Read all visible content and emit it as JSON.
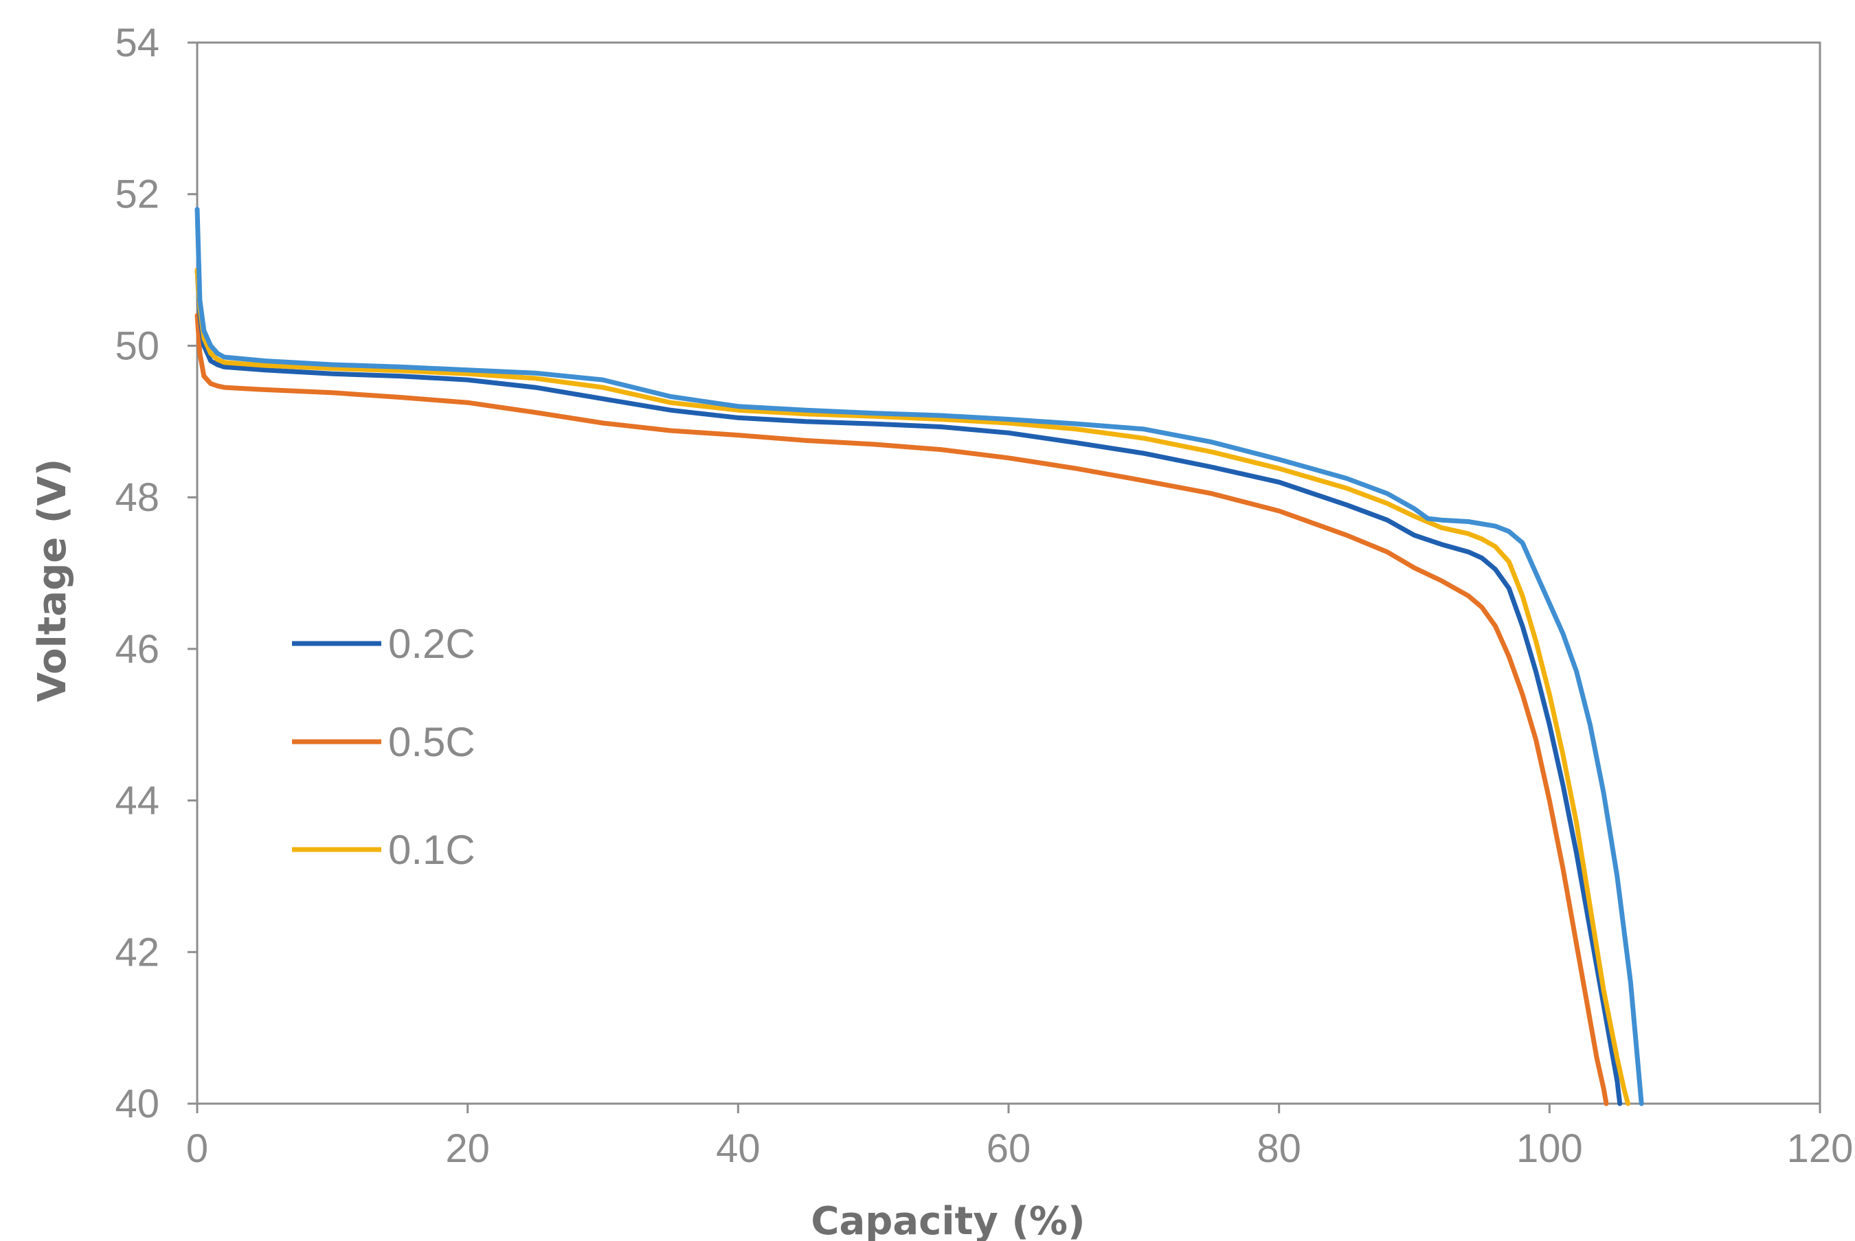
{
  "chart_data": {
    "type": "line",
    "xlabel": "Capacity (%)",
    "ylabel": "Voltage (V)",
    "xlim": [
      0,
      120
    ],
    "ylim": [
      40,
      54
    ],
    "xticks": [
      "0",
      "20",
      "40",
      "60",
      "80",
      "100",
      "120"
    ],
    "yticks": [
      "40",
      "42",
      "44",
      "46",
      "48",
      "50",
      "52",
      "54"
    ],
    "grid": false,
    "legend_position": "left-middle",
    "series": [
      {
        "name": "0.2C",
        "color": "#1f5fb0",
        "x": [
          0,
          0.2,
          0.5,
          1,
          1.5,
          2,
          5,
          10,
          15,
          20,
          25,
          30,
          35,
          40,
          45,
          50,
          55,
          60,
          65,
          70,
          75,
          80,
          85,
          88,
          90,
          92,
          94,
          95,
          96,
          97,
          98,
          99,
          100,
          101,
          102,
          103,
          104,
          104.5,
          105,
          105.2
        ],
        "y": [
          51.0,
          50.4,
          50.0,
          49.8,
          49.75,
          49.72,
          49.68,
          49.63,
          49.6,
          49.55,
          49.45,
          49.3,
          49.15,
          49.05,
          49.0,
          48.97,
          48.93,
          48.85,
          48.72,
          48.58,
          48.4,
          48.2,
          47.9,
          47.7,
          47.5,
          47.38,
          47.28,
          47.2,
          47.05,
          46.8,
          46.3,
          45.7,
          45.0,
          44.2,
          43.3,
          42.3,
          41.3,
          40.8,
          40.3,
          40.0
        ]
      },
      {
        "name": "0.5C",
        "color": "#e57225",
        "x": [
          0,
          0.2,
          0.5,
          1,
          1.5,
          2,
          5,
          10,
          15,
          20,
          25,
          30,
          35,
          40,
          45,
          50,
          55,
          60,
          65,
          70,
          75,
          80,
          85,
          88,
          90,
          92,
          94,
          95,
          96,
          97,
          98,
          99,
          100,
          101,
          102,
          103,
          103.5,
          104,
          104.2
        ],
        "y": [
          50.4,
          49.9,
          49.6,
          49.5,
          49.47,
          49.45,
          49.42,
          49.38,
          49.32,
          49.25,
          49.12,
          48.98,
          48.88,
          48.82,
          48.75,
          48.7,
          48.63,
          48.52,
          48.38,
          48.22,
          48.05,
          47.82,
          47.5,
          47.28,
          47.07,
          46.9,
          46.7,
          46.55,
          46.3,
          45.9,
          45.4,
          44.8,
          44.0,
          43.1,
          42.1,
          41.1,
          40.6,
          40.2,
          40.0
        ]
      },
      {
        "name": "0.1C",
        "color": "#f2b20d",
        "x": [
          0,
          0.2,
          0.5,
          1,
          1.5,
          2,
          5,
          10,
          15,
          20,
          25,
          30,
          35,
          40,
          45,
          50,
          55,
          60,
          65,
          70,
          75,
          80,
          85,
          88,
          90,
          92,
          94,
          95,
          96,
          97,
          98,
          99,
          100,
          101,
          102,
          103,
          104,
          105,
          105.5,
          105.8
        ],
        "y": [
          51.0,
          50.5,
          50.1,
          49.9,
          49.82,
          49.78,
          49.74,
          49.7,
          49.67,
          49.63,
          49.57,
          49.45,
          49.25,
          49.15,
          49.1,
          49.07,
          49.03,
          48.98,
          48.9,
          48.78,
          48.6,
          48.38,
          48.12,
          47.92,
          47.75,
          47.6,
          47.52,
          47.45,
          47.35,
          47.15,
          46.7,
          46.1,
          45.4,
          44.6,
          43.7,
          42.6,
          41.5,
          40.6,
          40.2,
          40.0
        ]
      },
      {
        "name": "",
        "color": "#3f8fd2",
        "x": [
          0,
          0.2,
          0.5,
          1,
          1.5,
          2,
          5,
          10,
          15,
          20,
          25,
          30,
          35,
          40,
          45,
          50,
          55,
          60,
          65,
          70,
          75,
          80,
          85,
          88,
          90,
          91,
          92,
          94,
          96,
          97,
          98,
          99,
          100,
          101,
          102,
          103,
          104,
          105,
          106,
          106.5,
          106.8
        ],
        "y": [
          51.8,
          50.6,
          50.2,
          50.0,
          49.9,
          49.85,
          49.8,
          49.75,
          49.72,
          49.68,
          49.64,
          49.55,
          49.33,
          49.2,
          49.15,
          49.11,
          49.08,
          49.03,
          48.97,
          48.9,
          48.73,
          48.5,
          48.25,
          48.05,
          47.85,
          47.72,
          47.7,
          47.68,
          47.62,
          47.55,
          47.4,
          47.0,
          46.6,
          46.2,
          45.7,
          45.0,
          44.1,
          43.0,
          41.6,
          40.6,
          40.0
        ]
      }
    ],
    "legend": [
      "0.2C",
      "0.5C",
      "0.1C"
    ]
  }
}
